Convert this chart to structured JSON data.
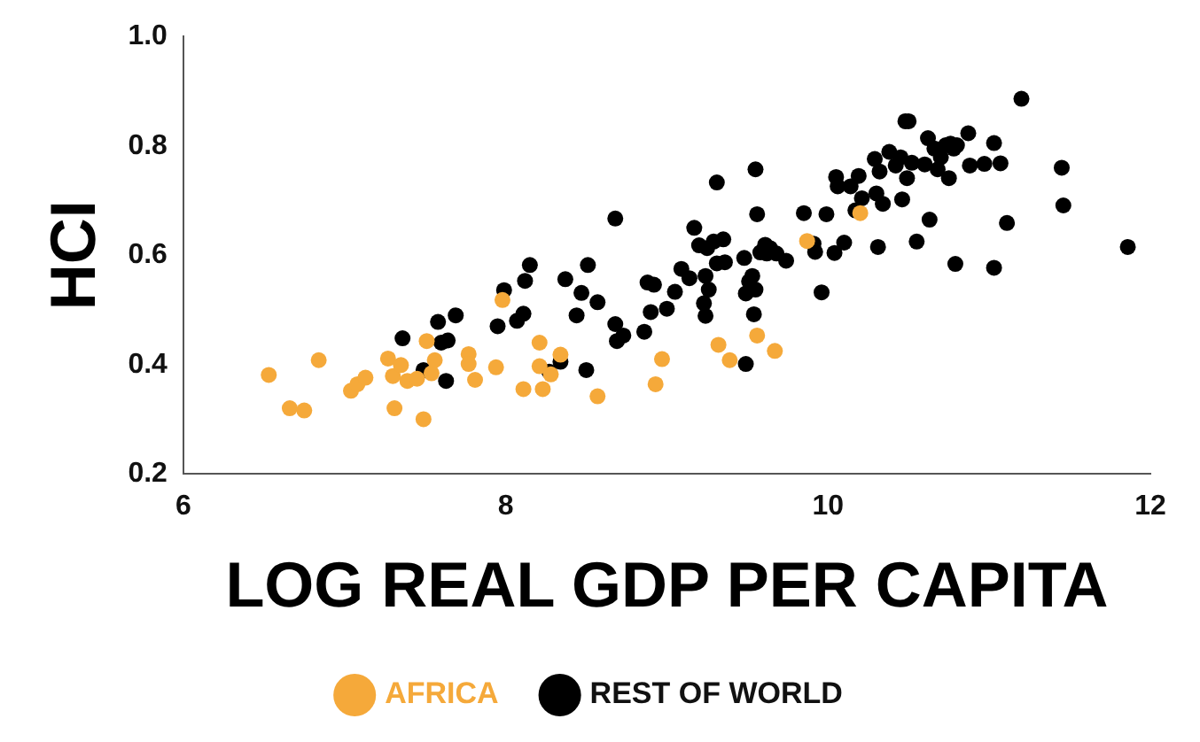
{
  "chart_data": {
    "type": "scatter",
    "xlabel": "LOG REAL GDP PER CAPITA",
    "ylabel": "HCI",
    "xlim": [
      6,
      12
    ],
    "xticks": [
      6,
      8,
      10,
      12
    ],
    "ylim": [
      0.2,
      1.0
    ],
    "yticks": [
      {
        "value": 0.2,
        "label": "0.2"
      },
      {
        "value": 0.4,
        "label": "0.4"
      },
      {
        "value": 0.6,
        "label": "0.6"
      },
      {
        "value": 0.8,
        "label": "0.8"
      },
      {
        "value": 1.0,
        "label": "1.0"
      }
    ],
    "grid": false,
    "legend": "bottom",
    "marker": "circle",
    "series": [
      {
        "name": "AFRICA",
        "color": "#f5a93a",
        "x": [
          6.53,
          6.66,
          6.75,
          6.84,
          7.04,
          7.08,
          7.13,
          7.27,
          7.3,
          7.31,
          7.35,
          7.39,
          7.45,
          7.49,
          7.51,
          7.54,
          7.56,
          7.77,
          7.77,
          7.81,
          7.94,
          7.98,
          8.11,
          8.21,
          8.21,
          8.23,
          8.28,
          8.34,
          8.57,
          8.93,
          8.97,
          9.32,
          9.39,
          9.56,
          9.67,
          9.87,
          10.2
        ],
        "values": [
          0.381,
          0.32,
          0.316,
          0.408,
          0.352,
          0.364,
          0.376,
          0.411,
          0.379,
          0.32,
          0.399,
          0.37,
          0.374,
          0.3,
          0.443,
          0.384,
          0.408,
          0.419,
          0.401,
          0.372,
          0.395,
          0.518,
          0.355,
          0.44,
          0.397,
          0.355,
          0.382,
          0.418,
          0.342,
          0.364,
          0.41,
          0.436,
          0.408,
          0.453,
          0.425,
          0.626,
          0.677
        ]
      },
      {
        "name": "REST OF WORLD",
        "color": "#000000",
        "x": [
          7.36,
          7.49,
          7.58,
          7.6,
          7.64,
          7.63,
          7.69,
          7.95,
          7.99,
          8.07,
          8.11,
          8.12,
          8.15,
          8.27,
          8.34,
          8.37,
          8.44,
          8.47,
          8.5,
          8.51,
          8.57,
          8.68,
          8.68,
          8.69,
          8.73,
          8.86,
          8.88,
          8.9,
          8.92,
          9.0,
          9.05,
          9.09,
          9.14,
          9.17,
          9.2,
          9.23,
          9.24,
          9.24,
          9.25,
          9.26,
          9.29,
          9.31,
          9.31,
          9.35,
          9.36,
          9.48,
          9.49,
          9.51,
          9.49,
          9.53,
          9.54,
          9.55,
          9.55,
          9.56,
          9.58,
          9.61,
          9.62,
          9.64,
          9.68,
          9.74,
          9.85,
          9.91,
          9.92,
          9.96,
          9.99,
          10.04,
          10.05,
          10.06,
          10.1,
          10.14,
          10.17,
          10.19,
          10.21,
          10.29,
          10.3,
          10.31,
          10.32,
          10.34,
          10.38,
          10.42,
          10.45,
          10.46,
          10.48,
          10.5,
          10.49,
          10.52,
          10.55,
          10.6,
          10.62,
          10.63,
          10.66,
          10.68,
          10.7,
          10.73,
          10.75,
          10.76,
          10.78,
          10.79,
          10.8,
          10.87,
          10.88,
          10.97,
          11.03,
          11.03,
          11.07,
          11.11,
          11.2,
          11.45,
          11.46,
          11.86
        ],
        "values": [
          0.448,
          0.39,
          0.478,
          0.44,
          0.444,
          0.37,
          0.49,
          0.47,
          0.536,
          0.48,
          0.493,
          0.553,
          0.582,
          0.387,
          0.405,
          0.556,
          0.49,
          0.531,
          0.39,
          0.582,
          0.514,
          0.667,
          0.474,
          0.443,
          0.453,
          0.46,
          0.55,
          0.496,
          0.546,
          0.502,
          0.533,
          0.575,
          0.558,
          0.65,
          0.618,
          0.512,
          0.489,
          0.562,
          0.613,
          0.537,
          0.625,
          0.585,
          0.733,
          0.629,
          0.587,
          0.595,
          0.53,
          0.552,
          0.401,
          0.562,
          0.492,
          0.537,
          0.757,
          0.675,
          0.605,
          0.619,
          0.603,
          0.613,
          0.603,
          0.59,
          0.677,
          0.621,
          0.606,
          0.532,
          0.675,
          0.604,
          0.743,
          0.726,
          0.623,
          0.726,
          0.682,
          0.745,
          0.704,
          0.776,
          0.713,
          0.615,
          0.753,
          0.694,
          0.789,
          0.764,
          0.779,
          0.702,
          0.845,
          0.845,
          0.741,
          0.769,
          0.625,
          0.766,
          0.814,
          0.665,
          0.795,
          0.757,
          0.779,
          0.801,
          0.741,
          0.804,
          0.795,
          0.584,
          0.801,
          0.823,
          0.764,
          0.767,
          0.805,
          0.577,
          0.768,
          0.659,
          0.886,
          0.76,
          0.691,
          0.615
        ]
      }
    ]
  }
}
